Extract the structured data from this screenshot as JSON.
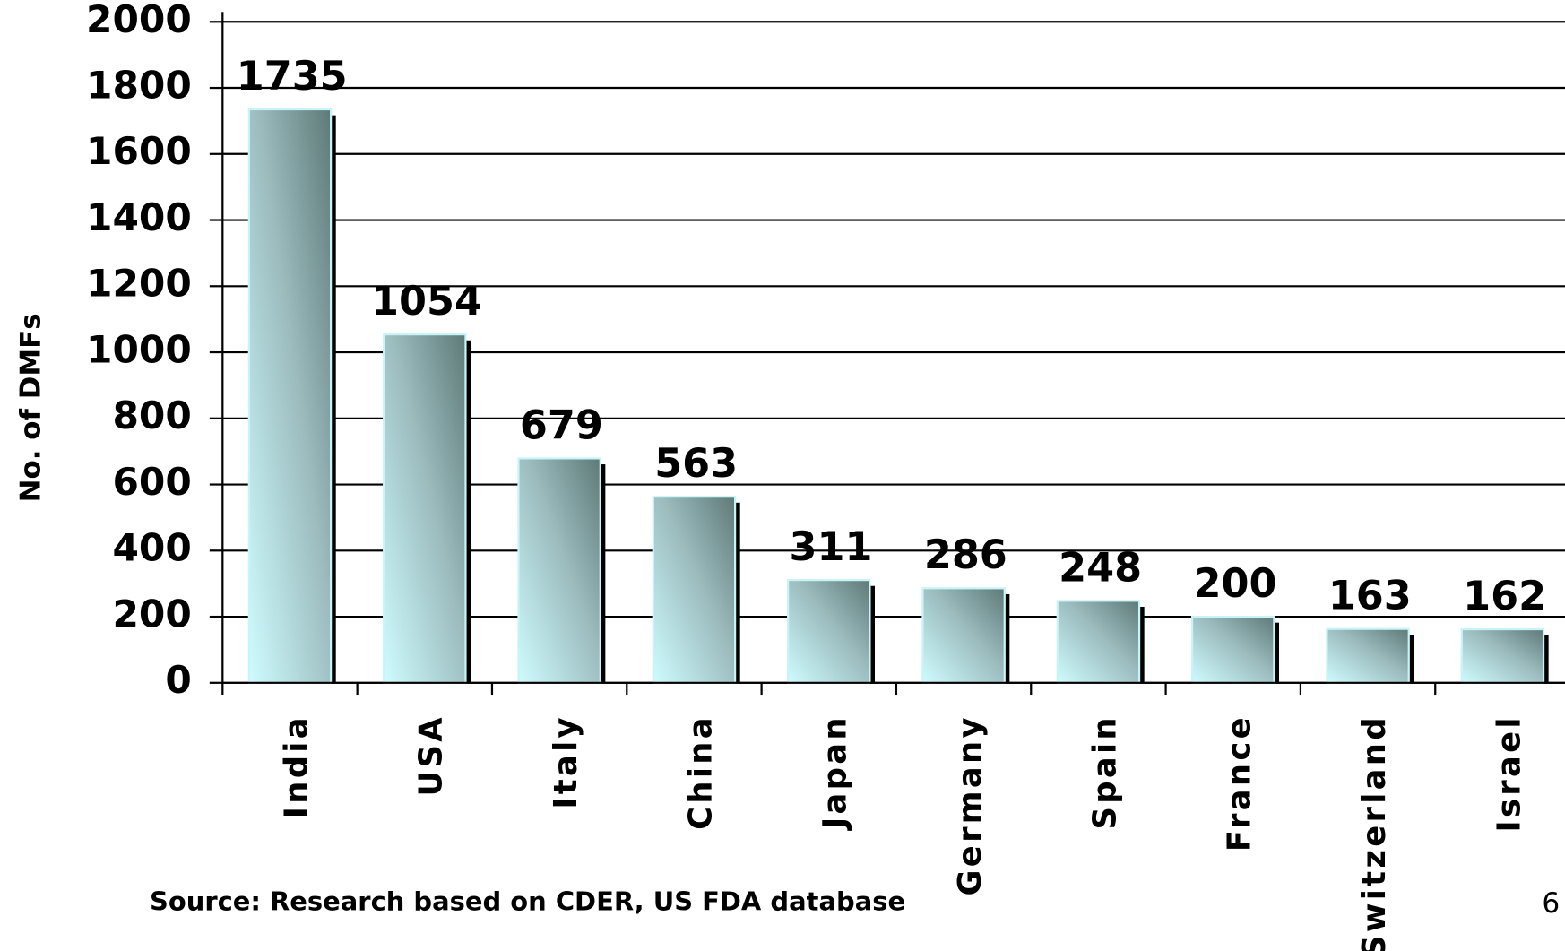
{
  "chart_data": {
    "type": "bar",
    "y_axis_label": "No. of DMFs",
    "categories": [
      "India",
      "USA",
      "Italy",
      "China",
      "Japan",
      "Germany",
      "Spain",
      "France",
      "Switzerland",
      "Israel"
    ],
    "values": [
      1735,
      1054,
      679,
      563,
      311,
      286,
      248,
      200,
      163,
      162
    ],
    "ylim": [
      0,
      2000
    ],
    "yticks": [
      0,
      200,
      400,
      600,
      800,
      1000,
      1200,
      1400,
      1600,
      1800,
      2000
    ],
    "grid": true,
    "color": "#9cbcbe",
    "source": "Source: Research based on CDER, US FDA database"
  },
  "page_number": "6"
}
